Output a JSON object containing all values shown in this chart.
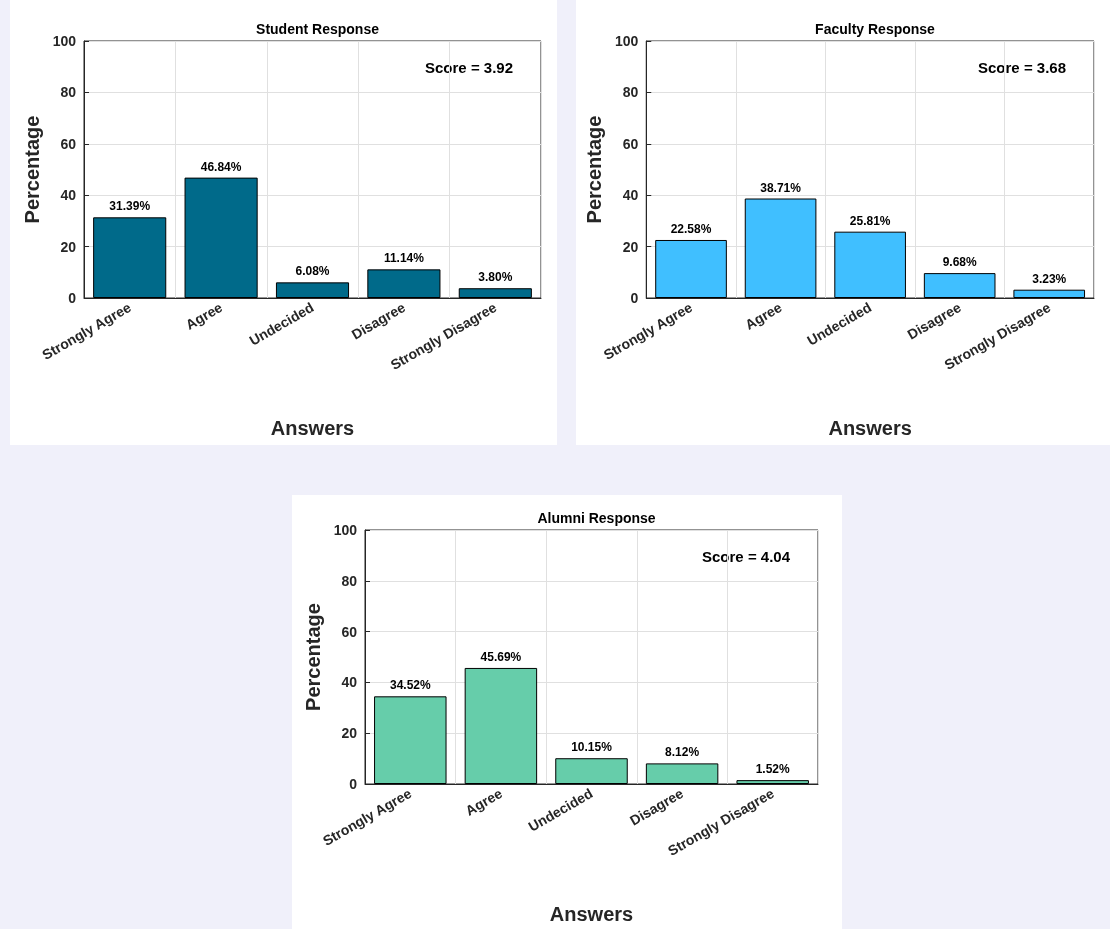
{
  "chart_data": [
    {
      "type": "bar",
      "title": "Student Response",
      "xlabel": "Answers",
      "ylabel": "Percentage",
      "categories": [
        "Strongly Agree",
        "Agree",
        "Undecided",
        "Disagree",
        "Strongly Disagree"
      ],
      "values": [
        31.39,
        46.84,
        6.08,
        11.14,
        3.8
      ],
      "value_labels": [
        "31.39%",
        "46.84%",
        "6.08%",
        "11.14%",
        "3.80%"
      ],
      "color": "#006a8a",
      "ylim": [
        0,
        100
      ],
      "yticks": [
        0,
        20,
        40,
        60,
        80,
        100
      ],
      "grid": true,
      "annotations": [
        "Score = 3.92"
      ]
    },
    {
      "type": "bar",
      "title": "Faculty Response",
      "xlabel": "Answers",
      "ylabel": "Percentage",
      "categories": [
        "Strongly Agree",
        "Agree",
        "Undecided",
        "Disagree",
        "Strongly Disagree"
      ],
      "values": [
        22.58,
        38.71,
        25.81,
        9.68,
        3.23
      ],
      "value_labels": [
        "22.58%",
        "38.71%",
        "25.81%",
        "9.68%",
        "3.23%"
      ],
      "color": "#40bfff",
      "ylim": [
        0,
        100
      ],
      "yticks": [
        0,
        20,
        40,
        60,
        80,
        100
      ],
      "grid": true,
      "annotations": [
        "Score = 3.68"
      ]
    },
    {
      "type": "bar",
      "title": "Alumni Response",
      "xlabel": "Answers",
      "ylabel": "Percentage",
      "categories": [
        "Strongly Agree",
        "Agree",
        "Undecided",
        "Disagree",
        "Strongly Disagree"
      ],
      "values": [
        34.52,
        45.69,
        10.15,
        8.12,
        1.52
      ],
      "value_labels": [
        "34.52%",
        "45.69%",
        "10.15%",
        "8.12%",
        "1.52%"
      ],
      "color": "#66cdaa",
      "ylim": [
        0,
        100
      ],
      "yticks": [
        0,
        20,
        40,
        60,
        80,
        100
      ],
      "grid": true,
      "annotations": [
        "Score = 4.04"
      ]
    }
  ]
}
